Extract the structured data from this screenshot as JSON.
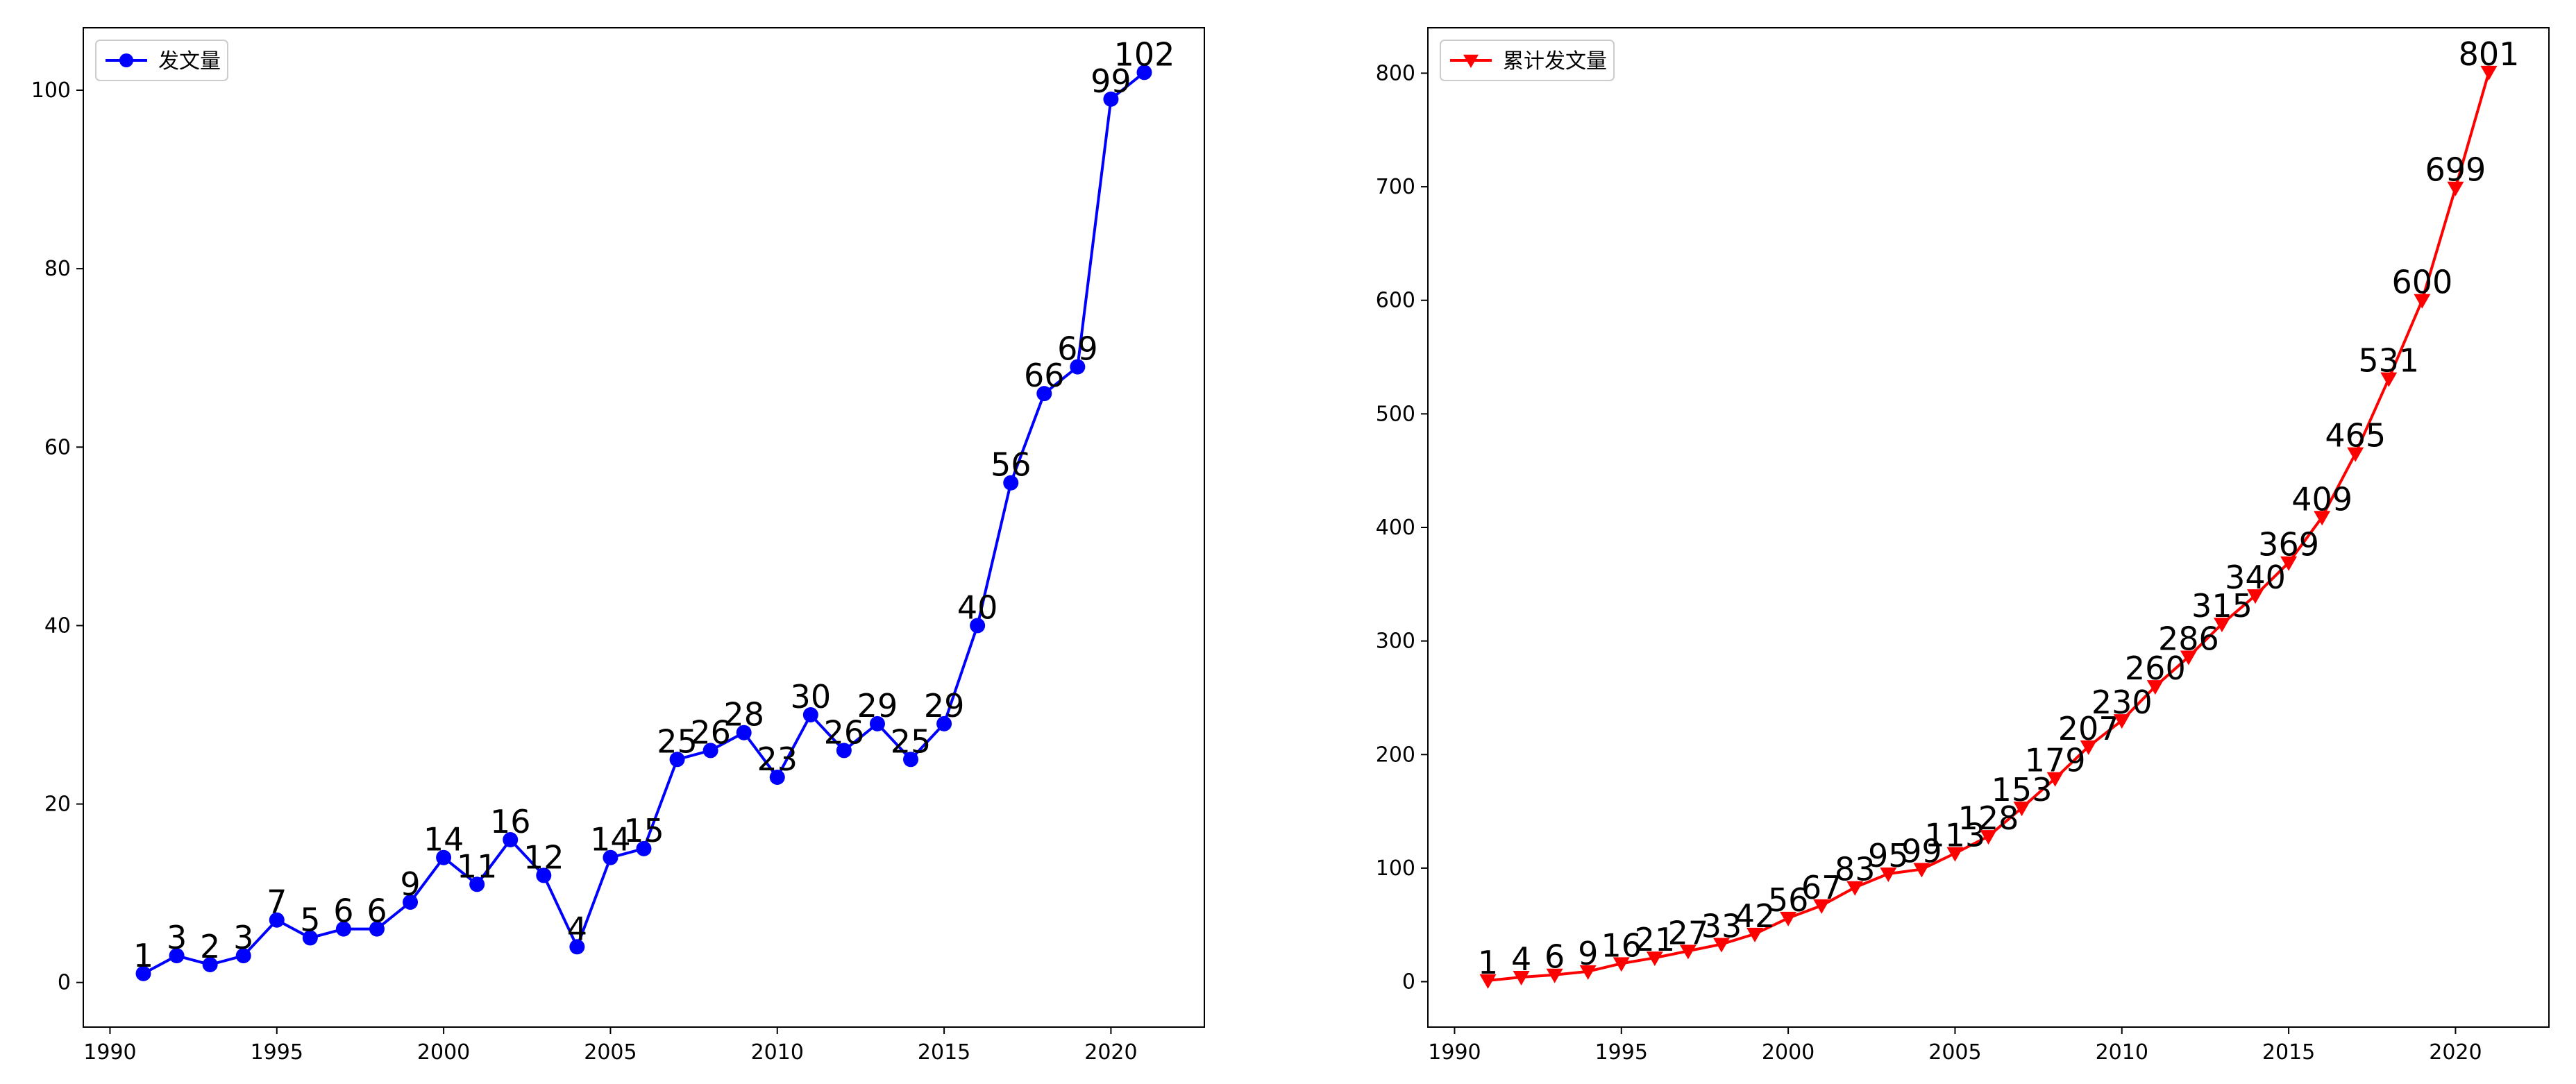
{
  "chart_data": [
    {
      "type": "line",
      "color": "#0000ff",
      "marker": "circle",
      "legend_position": "top-left",
      "grid": false,
      "xlim": [
        1989.2,
        2022.8
      ],
      "ylim": [
        -5,
        107
      ],
      "x_ticks": [
        1990,
        1995,
        2000,
        2005,
        2010,
        2015,
        2020
      ],
      "y_ticks": [
        0,
        20,
        40,
        60,
        80,
        100
      ],
      "series": [
        {
          "name": "发文量",
          "x": [
            1991,
            1992,
            1993,
            1994,
            1995,
            1996,
            1997,
            1998,
            1999,
            2000,
            2001,
            2002,
            2003,
            2004,
            2005,
            2006,
            2007,
            2008,
            2009,
            2010,
            2011,
            2012,
            2013,
            2014,
            2015,
            2016,
            2017,
            2018,
            2019,
            2020,
            2021
          ],
          "values": [
            1,
            3,
            2,
            3,
            7,
            5,
            6,
            6,
            9,
            14,
            11,
            16,
            12,
            4,
            14,
            15,
            25,
            26,
            28,
            23,
            30,
            26,
            29,
            25,
            29,
            40,
            56,
            66,
            69,
            99,
            102
          ]
        }
      ]
    },
    {
      "type": "line",
      "color": "#ff0000",
      "marker": "triangle-down",
      "legend_position": "top-left",
      "grid": false,
      "xlim": [
        1989.2,
        2022.8
      ],
      "ylim": [
        -40,
        840
      ],
      "x_ticks": [
        1990,
        1995,
        2000,
        2005,
        2010,
        2015,
        2020
      ],
      "y_ticks": [
        0,
        100,
        200,
        300,
        400,
        500,
        600,
        700,
        800
      ],
      "series": [
        {
          "name": "累计发文量",
          "x": [
            1991,
            1992,
            1993,
            1994,
            1995,
            1996,
            1997,
            1998,
            1999,
            2000,
            2001,
            2002,
            2003,
            2004,
            2005,
            2006,
            2007,
            2008,
            2009,
            2010,
            2011,
            2012,
            2013,
            2014,
            2015,
            2016,
            2017,
            2018,
            2019,
            2020,
            2021
          ],
          "values": [
            1,
            4,
            6,
            9,
            16,
            21,
            27,
            33,
            42,
            56,
            67,
            83,
            95,
            99,
            113,
            128,
            153,
            179,
            207,
            230,
            260,
            286,
            315,
            340,
            369,
            409,
            465,
            531,
            600,
            699,
            801
          ]
        }
      ]
    }
  ]
}
